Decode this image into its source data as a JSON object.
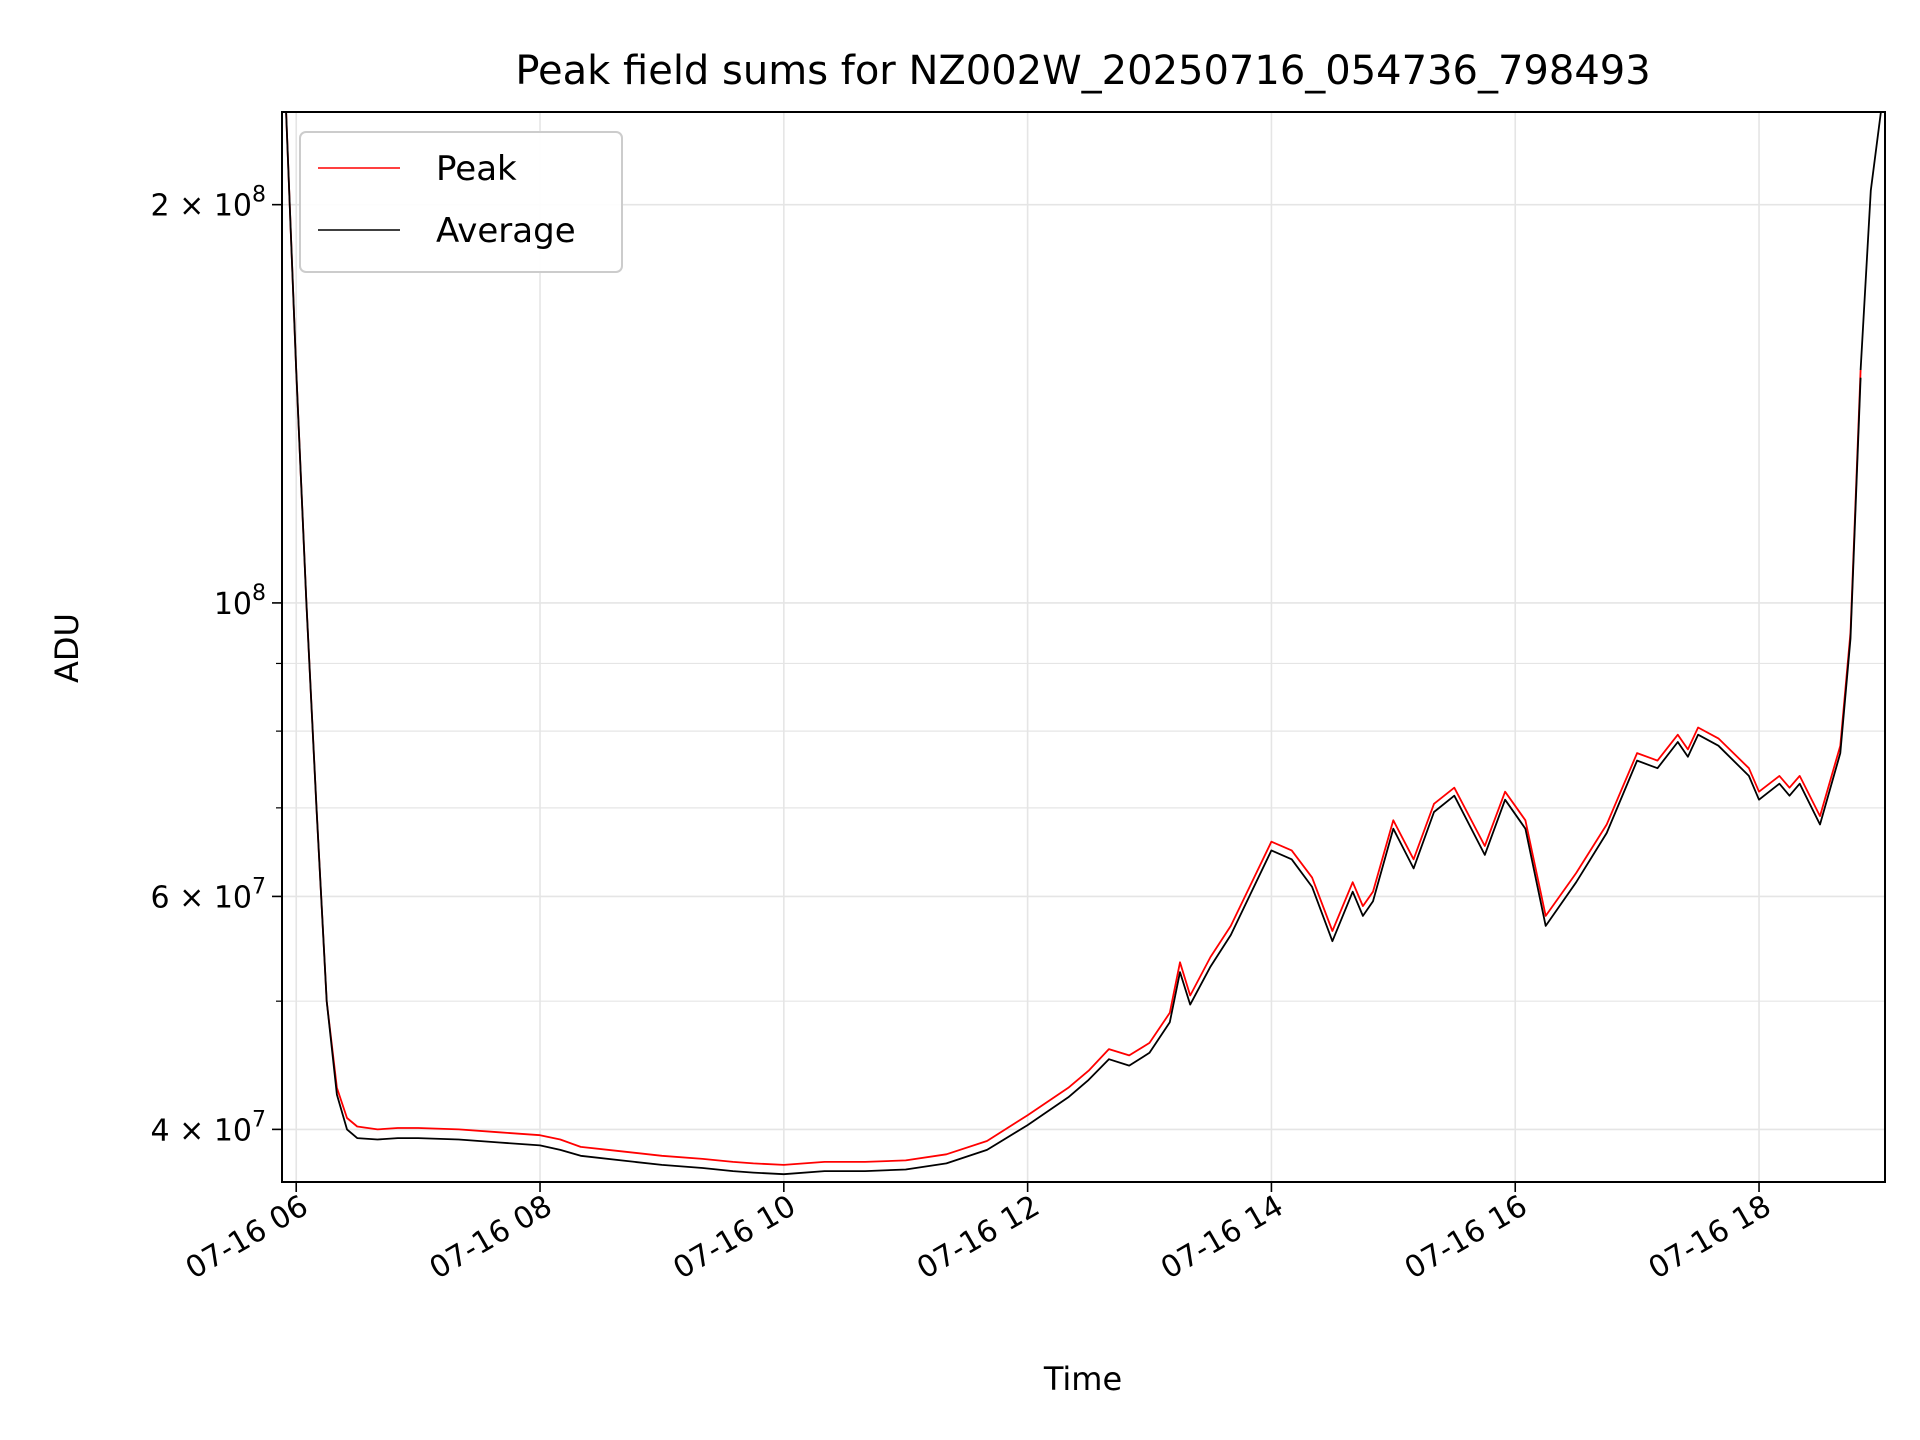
{
  "chart_data": {
    "type": "line",
    "title": "Peak field sums for NZ002W_20250716_054736_798493",
    "xlabel": "Time",
    "ylabel": "ADU",
    "y_scale": "log",
    "xlim": [
      "2025-07-16 05:53",
      "2025-07-16 19:02"
    ],
    "ylim": [
      36500000,
      235000000
    ],
    "grid": true,
    "legend_location": "top-left",
    "x_ticks": [
      {
        "value": "2025-07-16 06:00",
        "label": "07-16 06"
      },
      {
        "value": "2025-07-16 08:00",
        "label": "07-16 08"
      },
      {
        "value": "2025-07-16 10:00",
        "label": "07-16 10"
      },
      {
        "value": "2025-07-16 12:00",
        "label": "07-16 12"
      },
      {
        "value": "2025-07-16 14:00",
        "label": "07-16 14"
      },
      {
        "value": "2025-07-16 16:00",
        "label": "07-16 16"
      },
      {
        "value": "2025-07-16 18:00",
        "label": "07-16 18"
      }
    ],
    "y_major_ticks": [
      {
        "value": 40000000,
        "mantissa": "4",
        "exponent": "7"
      },
      {
        "value": 60000000,
        "mantissa": "6",
        "exponent": "7"
      },
      {
        "value": 100000000,
        "mantissa": "",
        "exponent": "8"
      },
      {
        "value": 200000000,
        "mantissa": "2",
        "exponent": "8"
      }
    ],
    "y_minor_ticks": [
      50000000,
      70000000,
      80000000,
      90000000
    ],
    "x": [
      "2025-07-16 05:55",
      "2025-07-16 06:00",
      "2025-07-16 06:05",
      "2025-07-16 06:10",
      "2025-07-16 06:15",
      "2025-07-16 06:20",
      "2025-07-16 06:25",
      "2025-07-16 06:30",
      "2025-07-16 06:40",
      "2025-07-16 06:50",
      "2025-07-16 07:00",
      "2025-07-16 07:20",
      "2025-07-16 07:40",
      "2025-07-16 08:00",
      "2025-07-16 08:10",
      "2025-07-16 08:20",
      "2025-07-16 08:40",
      "2025-07-16 09:00",
      "2025-07-16 09:20",
      "2025-07-16 09:35",
      "2025-07-16 09:45",
      "2025-07-16 10:00",
      "2025-07-16 10:20",
      "2025-07-16 10:40",
      "2025-07-16 11:00",
      "2025-07-16 11:20",
      "2025-07-16 11:40",
      "2025-07-16 12:00",
      "2025-07-16 12:20",
      "2025-07-16 12:30",
      "2025-07-16 12:40",
      "2025-07-16 12:50",
      "2025-07-16 13:00",
      "2025-07-16 13:10",
      "2025-07-16 13:15",
      "2025-07-16 13:20",
      "2025-07-16 13:30",
      "2025-07-16 13:40",
      "2025-07-16 14:00",
      "2025-07-16 14:10",
      "2025-07-16 14:20",
      "2025-07-16 14:30",
      "2025-07-16 14:40",
      "2025-07-16 14:45",
      "2025-07-16 14:50",
      "2025-07-16 15:00",
      "2025-07-16 15:10",
      "2025-07-16 15:20",
      "2025-07-16 15:30",
      "2025-07-16 15:45",
      "2025-07-16 15:55",
      "2025-07-16 16:05",
      "2025-07-16 16:15",
      "2025-07-16 16:30",
      "2025-07-16 16:45",
      "2025-07-16 17:00",
      "2025-07-16 17:10",
      "2025-07-16 17:20",
      "2025-07-16 17:25",
      "2025-07-16 17:30",
      "2025-07-16 17:40",
      "2025-07-16 17:55",
      "2025-07-16 18:00",
      "2025-07-16 18:10",
      "2025-07-16 18:15",
      "2025-07-16 18:20",
      "2025-07-16 18:30",
      "2025-07-16 18:40",
      "2025-07-16 18:45",
      "2025-07-16 18:50"
    ],
    "series": [
      {
        "name": "Peak",
        "color": "#ff0000",
        "values": [
          235000000,
          150000000,
          100000000,
          70000000,
          50000000,
          43000000,
          40800000,
          40200000,
          40000000,
          40100000,
          40100000,
          40000000,
          39800000,
          39600000,
          39300000,
          38800000,
          38500000,
          38200000,
          38000000,
          37800000,
          37700000,
          37600000,
          37800000,
          37800000,
          37900000,
          38300000,
          39200000,
          41000000,
          43000000,
          44300000,
          46000000,
          45500000,
          46500000,
          49000000,
          53500000,
          50500000,
          54000000,
          57000000,
          66000000,
          65000000,
          62000000,
          56500000,
          61500000,
          59000000,
          60500000,
          68500000,
          64000000,
          70500000,
          72500000,
          65500000,
          72000000,
          68500000,
          58000000,
          62500000,
          68000000,
          77000000,
          76000000,
          79500000,
          77500000,
          80500000,
          79000000,
          75000000,
          72000000,
          74000000,
          72500000,
          74000000,
          69000000,
          78000000,
          95000000,
          150000000
        ]
      },
      {
        "name": "Average",
        "color": "#000000",
        "values": [
          235000000,
          150000000,
          100000000,
          70000000,
          50000000,
          42500000,
          40000000,
          39400000,
          39300000,
          39400000,
          39400000,
          39300000,
          39100000,
          38900000,
          38600000,
          38200000,
          37900000,
          37600000,
          37400000,
          37200000,
          37100000,
          37000000,
          37200000,
          37200000,
          37300000,
          37700000,
          38600000,
          40300000,
          42300000,
          43600000,
          45200000,
          44700000,
          45700000,
          48200000,
          52600000,
          49700000,
          53100000,
          56100000,
          65000000,
          64000000,
          61000000,
          55500000,
          60500000,
          58000000,
          59500000,
          67500000,
          63000000,
          69500000,
          71500000,
          64500000,
          71000000,
          67500000,
          57000000,
          61500000,
          67000000,
          76000000,
          75000000,
          78500000,
          76500000,
          79500000,
          78000000,
          74000000,
          71000000,
          73000000,
          71500000,
          73000000,
          68000000,
          77000000,
          94000000,
          148000000
        ]
      }
    ],
    "end_segment": {
      "x": [
        "2025-07-16 18:50",
        "2025-07-16 18:55",
        "2025-07-16 19:00"
      ],
      "values": [
        150000000,
        205000000,
        235000000
      ]
    }
  }
}
